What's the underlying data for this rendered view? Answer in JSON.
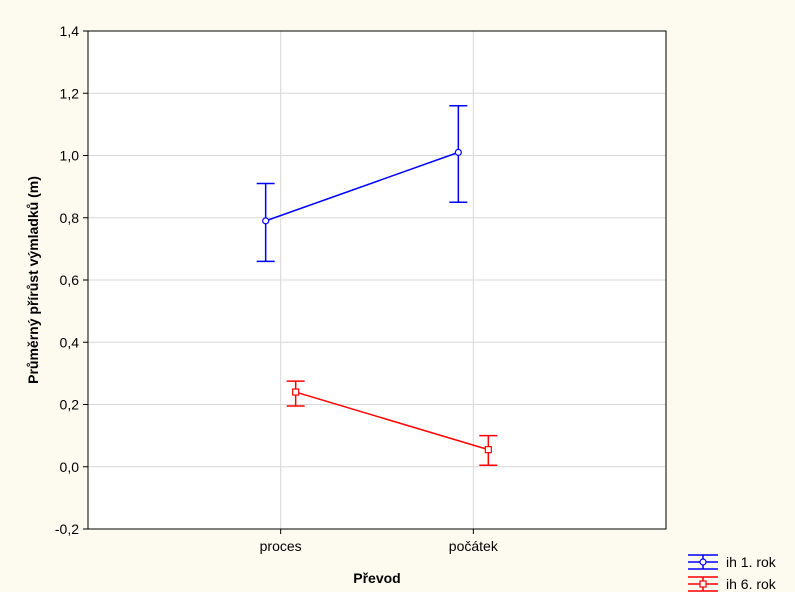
{
  "chart_data": {
    "type": "line",
    "title": "",
    "xlabel": "Převod",
    "ylabel": "Průměrný přírůst výmladků (m)",
    "categories": [
      "proces",
      "počátek"
    ],
    "ylim": [
      -0.2,
      1.4
    ],
    "y_ticks": [
      -0.2,
      0.0,
      0.2,
      0.4,
      0.6,
      0.8,
      1.0,
      1.2,
      1.4
    ],
    "y_tick_labels": [
      "-0,2",
      "0,0",
      "0,2",
      "0,4",
      "0,6",
      "0,8",
      "1,0",
      "1,2",
      "1,4"
    ],
    "grid": true,
    "legend_position": "bottom-right",
    "series": [
      {
        "name": "ih 1. rok",
        "color": "#0000ff",
        "marker": "circle",
        "values": [
          0.79,
          1.01
        ],
        "error_low": [
          0.66,
          0.85
        ],
        "error_high": [
          0.91,
          1.16
        ]
      },
      {
        "name": "ih 6. rok",
        "color": "#ff0000",
        "marker": "square",
        "values": [
          0.24,
          0.055
        ],
        "error_low": [
          0.195,
          0.005
        ],
        "error_high": [
          0.275,
          0.1
        ]
      }
    ]
  }
}
